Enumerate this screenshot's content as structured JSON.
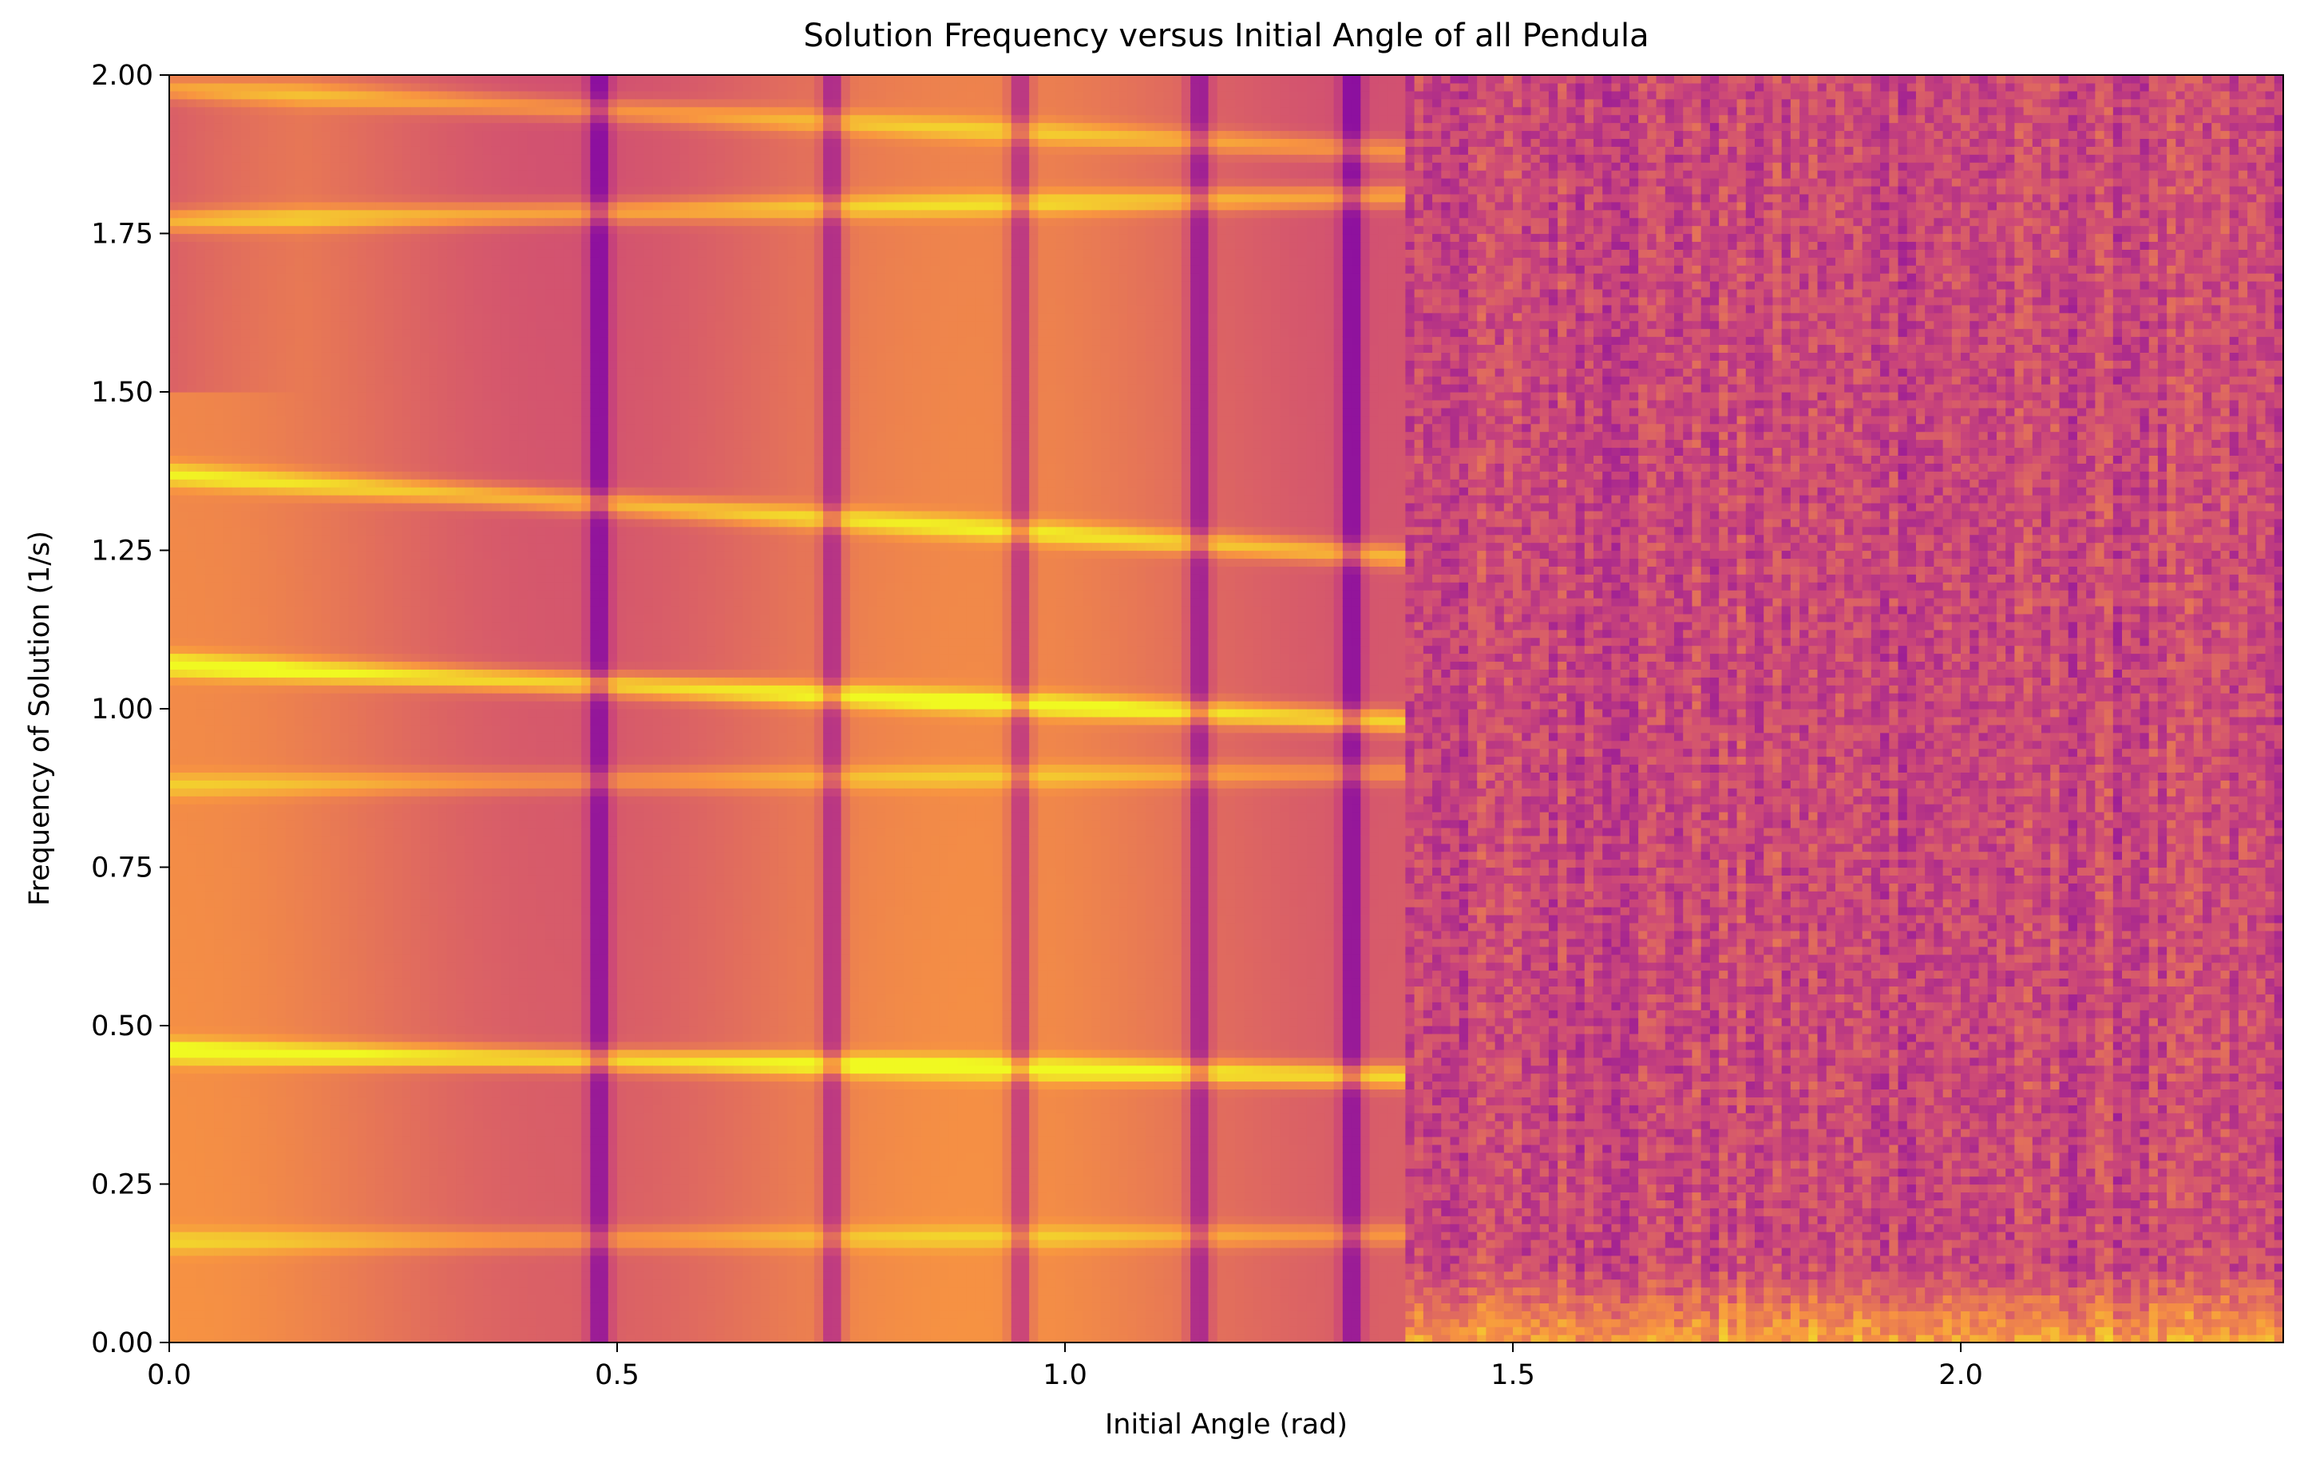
{
  "chart_data": {
    "type": "heatmap",
    "title": "Solution Frequency versus Initial Angle of all Pendula",
    "xlabel": "Initial Angle (rad)",
    "ylabel": "Frequency of Solution (1/s)",
    "xlim": [
      0.0,
      2.36
    ],
    "ylim": [
      0.0,
      2.0
    ],
    "x_ticks": [
      "0.0",
      "0.5",
      "1.0",
      "1.5",
      "2.0"
    ],
    "x_tick_values": [
      0.0,
      0.5,
      1.0,
      1.5,
      2.0
    ],
    "y_ticks": [
      "0.00",
      "0.25",
      "0.50",
      "0.75",
      "1.00",
      "1.25",
      "1.50",
      "1.75",
      "2.00"
    ],
    "y_tick_values": [
      0.0,
      0.25,
      0.5,
      0.75,
      1.0,
      1.25,
      1.5,
      1.75,
      2.0
    ],
    "colormap": "plasma",
    "grid": false,
    "transition_angle": 1.38,
    "ridges": [
      {
        "freq_start": 0.46,
        "freq_end": 0.42,
        "strength": 1.0
      },
      {
        "freq_start": 1.07,
        "freq_end": 0.98,
        "strength": 1.0
      },
      {
        "freq_start": 1.37,
        "freq_end": 1.24,
        "strength": 0.8
      },
      {
        "freq_start": 1.77,
        "freq_end": 1.81,
        "strength": 0.7
      },
      {
        "freq_start": 1.98,
        "freq_end": 1.88,
        "strength": 0.6
      },
      {
        "freq_start": 0.88,
        "freq_end": 0.9,
        "strength": 0.5
      },
      {
        "freq_start": 0.16,
        "freq_end": 0.17,
        "strength": 0.5
      }
    ],
    "dark_columns": [
      0.48,
      0.74,
      0.95,
      1.15,
      1.32
    ],
    "colors": {
      "high": "#f0f921",
      "mid": "#f89540",
      "low": "#cc4778",
      "dark": "#7e03a8",
      "darkest": "#0d0887"
    }
  }
}
